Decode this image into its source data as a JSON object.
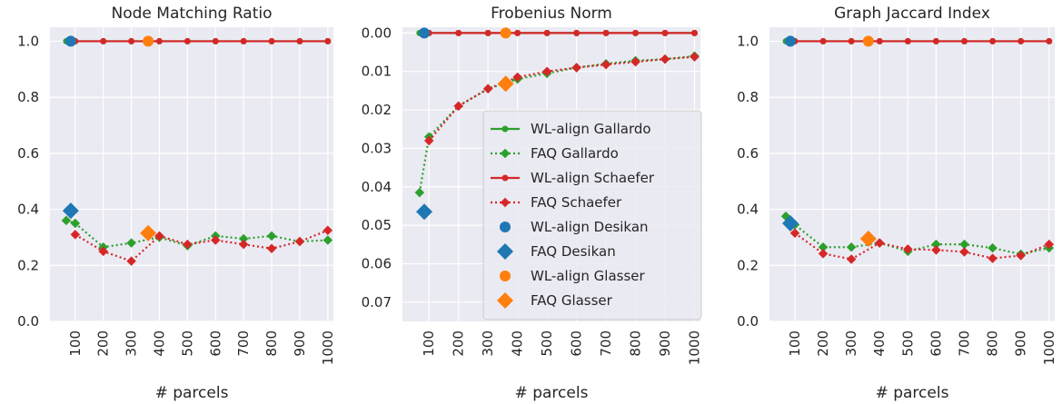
{
  "colors": {
    "background": "#eaeaf2",
    "grid": "#ffffff",
    "gallardo": "#2ca02c",
    "schaefer": "#d62728",
    "desikan": "#1f77b4",
    "glasser": "#ff7f0e"
  },
  "chart_data": [
    {
      "type": "line",
      "title": "Node Matching Ratio",
      "xlabel": "# parcels",
      "ylabel": "",
      "xlim": [
        10,
        1020
      ],
      "ylim": [
        0,
        1.05
      ],
      "inverted_y": false,
      "grid": true,
      "xticks": [
        100,
        200,
        300,
        400,
        500,
        600,
        700,
        800,
        900,
        1000
      ],
      "yticks": [
        0.0,
        0.2,
        0.4,
        0.6,
        0.8,
        1.0
      ],
      "ytick_labels": [
        "0.0",
        "0.2",
        "0.4",
        "0.6",
        "0.8",
        "1.0"
      ],
      "series": [
        {
          "name": "WL-align Gallardo",
          "style": "solid",
          "marker": "circle",
          "color": "#2ca02c",
          "x": [
            68,
            100,
            200,
            300,
            400,
            500,
            600,
            700,
            800,
            900,
            1000
          ],
          "y": [
            1.0,
            1.0,
            1.0,
            1.0,
            1.0,
            1.0,
            1.0,
            1.0,
            1.0,
            1.0,
            1.0
          ]
        },
        {
          "name": "FAQ Gallardo",
          "style": "dotted",
          "marker": "diamond",
          "color": "#2ca02c",
          "x": [
            68,
            100,
            200,
            300,
            400,
            500,
            600,
            700,
            800,
            900,
            1000
          ],
          "y": [
            0.36,
            0.35,
            0.265,
            0.28,
            0.3,
            0.27,
            0.305,
            0.295,
            0.305,
            0.285,
            0.29
          ]
        },
        {
          "name": "WL-align Schaefer",
          "style": "solid",
          "marker": "circle",
          "color": "#d62728",
          "x": [
            100,
            200,
            300,
            400,
            500,
            600,
            700,
            800,
            900,
            1000
          ],
          "y": [
            1.0,
            1.0,
            1.0,
            1.0,
            1.0,
            1.0,
            1.0,
            1.0,
            1.0,
            1.0
          ]
        },
        {
          "name": "FAQ Schaefer",
          "style": "dotted",
          "marker": "diamond",
          "color": "#d62728",
          "x": [
            100,
            200,
            300,
            400,
            500,
            600,
            700,
            800,
            900,
            1000
          ],
          "y": [
            0.31,
            0.25,
            0.215,
            0.305,
            0.275,
            0.29,
            0.275,
            0.26,
            0.285,
            0.325
          ]
        },
        {
          "name": "WL-align Desikan",
          "style": "none",
          "marker": "circle",
          "color": "#1f77b4",
          "x": [
            84
          ],
          "y": [
            1.0
          ]
        },
        {
          "name": "FAQ Desikan",
          "style": "none",
          "marker": "diamond",
          "color": "#1f77b4",
          "x": [
            84
          ],
          "y": [
            0.395
          ]
        },
        {
          "name": "WL-align Glasser",
          "style": "none",
          "marker": "circle",
          "color": "#ff7f0e",
          "x": [
            360
          ],
          "y": [
            1.0
          ]
        },
        {
          "name": "FAQ Glasser",
          "style": "none",
          "marker": "diamond",
          "color": "#ff7f0e",
          "x": [
            360
          ],
          "y": [
            0.315
          ]
        }
      ]
    },
    {
      "type": "line",
      "title": "Frobenius Norm",
      "xlabel": "# parcels",
      "ylabel": "",
      "xlim": [
        10,
        1020
      ],
      "ylim": [
        -0.0015,
        0.075
      ],
      "inverted_y": true,
      "grid": true,
      "xticks": [
        100,
        200,
        300,
        400,
        500,
        600,
        700,
        800,
        900,
        1000
      ],
      "yticks": [
        0.0,
        0.01,
        0.02,
        0.03,
        0.04,
        0.05,
        0.06,
        0.07
      ],
      "ytick_labels": [
        "0.00",
        "0.01",
        "0.02",
        "0.03",
        "0.04",
        "0.05",
        "0.06",
        "0.07"
      ],
      "legend": "center",
      "series": [
        {
          "name": "WL-align Gallardo",
          "style": "solid",
          "marker": "circle",
          "color": "#2ca02c",
          "x": [
            68,
            100,
            200,
            300,
            400,
            500,
            600,
            700,
            800,
            900,
            1000
          ],
          "y": [
            0,
            0,
            0,
            0,
            0,
            0,
            0,
            0,
            0,
            0,
            0
          ]
        },
        {
          "name": "FAQ Gallardo",
          "style": "dotted",
          "marker": "diamond",
          "color": "#2ca02c",
          "x": [
            68,
            100,
            200,
            300,
            400,
            500,
            600,
            700,
            800,
            900,
            1000
          ],
          "y": [
            0.0415,
            0.027,
            0.019,
            0.0145,
            0.012,
            0.0105,
            0.009,
            0.008,
            0.0072,
            0.0068,
            0.006
          ]
        },
        {
          "name": "WL-align Schaefer",
          "style": "solid",
          "marker": "circle",
          "color": "#d62728",
          "x": [
            100,
            200,
            300,
            400,
            500,
            600,
            700,
            800,
            900,
            1000
          ],
          "y": [
            0,
            0,
            0,
            0,
            0,
            0,
            0,
            0,
            0,
            0
          ]
        },
        {
          "name": "FAQ Schaefer",
          "style": "dotted",
          "marker": "diamond",
          "color": "#d62728",
          "x": [
            100,
            200,
            300,
            400,
            500,
            600,
            700,
            800,
            900,
            1000
          ],
          "y": [
            0.028,
            0.019,
            0.0145,
            0.0115,
            0.01,
            0.009,
            0.0082,
            0.0075,
            0.0068,
            0.0062
          ]
        },
        {
          "name": "WL-align Desikan",
          "style": "none",
          "marker": "circle",
          "color": "#1f77b4",
          "x": [
            84
          ],
          "y": [
            0
          ]
        },
        {
          "name": "FAQ Desikan",
          "style": "none",
          "marker": "diamond",
          "color": "#1f77b4",
          "x": [
            84
          ],
          "y": [
            0.0465
          ]
        },
        {
          "name": "WL-align Glasser",
          "style": "none",
          "marker": "circle",
          "color": "#ff7f0e",
          "x": [
            360
          ],
          "y": [
            0
          ]
        },
        {
          "name": "FAQ Glasser",
          "style": "none",
          "marker": "diamond",
          "color": "#ff7f0e",
          "x": [
            360
          ],
          "y": [
            0.0132
          ]
        }
      ]
    },
    {
      "type": "line",
      "title": "Graph Jaccard Index",
      "xlabel": "# parcels",
      "ylabel": "",
      "xlim": [
        10,
        1020
      ],
      "ylim": [
        0,
        1.05
      ],
      "inverted_y": false,
      "grid": true,
      "xticks": [
        100,
        200,
        300,
        400,
        500,
        600,
        700,
        800,
        900,
        1000
      ],
      "yticks": [
        0.0,
        0.2,
        0.4,
        0.6,
        0.8,
        1.0
      ],
      "ytick_labels": [
        "0.0",
        "0.2",
        "0.4",
        "0.6",
        "0.8",
        "1.0"
      ],
      "series": [
        {
          "name": "WL-align Gallardo",
          "style": "solid",
          "marker": "circle",
          "color": "#2ca02c",
          "x": [
            68,
            100,
            200,
            300,
            400,
            500,
            600,
            700,
            800,
            900,
            1000
          ],
          "y": [
            1.0,
            1.0,
            1.0,
            1.0,
            1.0,
            1.0,
            1.0,
            1.0,
            1.0,
            1.0,
            1.0
          ]
        },
        {
          "name": "FAQ Gallardo",
          "style": "dotted",
          "marker": "diamond",
          "color": "#2ca02c",
          "x": [
            68,
            100,
            200,
            300,
            400,
            500,
            600,
            700,
            800,
            900,
            1000
          ],
          "y": [
            0.375,
            0.345,
            0.265,
            0.265,
            0.28,
            0.25,
            0.275,
            0.275,
            0.262,
            0.24,
            0.262
          ]
        },
        {
          "name": "WL-align Schaefer",
          "style": "solid",
          "marker": "circle",
          "color": "#d62728",
          "x": [
            100,
            200,
            300,
            400,
            500,
            600,
            700,
            800,
            900,
            1000
          ],
          "y": [
            1.0,
            1.0,
            1.0,
            1.0,
            1.0,
            1.0,
            1.0,
            1.0,
            1.0,
            1.0
          ]
        },
        {
          "name": "FAQ Schaefer",
          "style": "dotted",
          "marker": "diamond",
          "color": "#d62728",
          "x": [
            100,
            200,
            300,
            400,
            500,
            600,
            700,
            800,
            900,
            1000
          ],
          "y": [
            0.315,
            0.242,
            0.222,
            0.28,
            0.258,
            0.255,
            0.248,
            0.225,
            0.235,
            0.275
          ]
        },
        {
          "name": "WL-align Desikan",
          "style": "none",
          "marker": "circle",
          "color": "#1f77b4",
          "x": [
            84
          ],
          "y": [
            1.0
          ]
        },
        {
          "name": "FAQ Desikan",
          "style": "none",
          "marker": "diamond",
          "color": "#1f77b4",
          "x": [
            84
          ],
          "y": [
            0.35
          ]
        },
        {
          "name": "WL-align Glasser",
          "style": "none",
          "marker": "circle",
          "color": "#ff7f0e",
          "x": [
            360
          ],
          "y": [
            1.0
          ]
        },
        {
          "name": "FAQ Glasser",
          "style": "none",
          "marker": "diamond",
          "color": "#ff7f0e",
          "x": [
            360
          ],
          "y": [
            0.295
          ]
        }
      ]
    }
  ]
}
